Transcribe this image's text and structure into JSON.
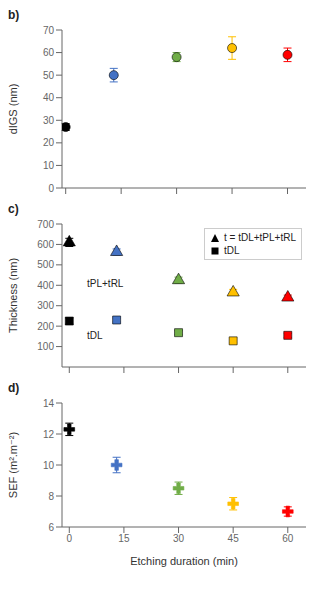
{
  "chart_data": [
    {
      "type": "scatter",
      "title": "b)",
      "ylabel": "dIGS (nm)",
      "x": [
        0,
        13,
        30,
        45,
        60
      ],
      "series": [
        {
          "values": [
            27,
            50,
            58,
            62,
            59
          ],
          "yerr": [
            1.5,
            3,
            2,
            5,
            3
          ],
          "colors": [
            "black",
            "#4472c4",
            "#70ad47",
            "#ffc000",
            "#ff0000"
          ],
          "marker": "circle"
        }
      ],
      "xlim": [
        -1,
        65
      ],
      "xticks": [
        0,
        15,
        30,
        45,
        60
      ],
      "ylim": [
        0,
        70
      ],
      "yticks": [
        0,
        10,
        20,
        30,
        40,
        50,
        60,
        70
      ],
      "tick_labels": "y"
    },
    {
      "type": "scatter",
      "title": "c)",
      "ylabel": "Thickness (nm)",
      "x": [
        0,
        13,
        30,
        45,
        60
      ],
      "series": [
        {
          "name": "t = tDL+tPL+tRL",
          "values": [
            610,
            563,
            425,
            365,
            340
          ],
          "yerr": [
            20,
            15,
            15,
            15,
            12
          ],
          "colors": [
            "black",
            "#4472c4",
            "#70ad47",
            "#ffc000",
            "#ff0000"
          ],
          "marker": "triangle"
        },
        {
          "name": "tDL",
          "values": [
            225,
            230,
            168,
            128,
            155
          ],
          "yerr": [
            15,
            10,
            10,
            10,
            10
          ],
          "colors": [
            "black",
            "#4472c4",
            "#70ad47",
            "#ffc000",
            "#ff0000"
          ],
          "marker": "square"
        }
      ],
      "annotations": [
        {
          "text": "tPL+tRL",
          "x": 3.5,
          "y": 410
        },
        {
          "text": "tDL",
          "x": 3.5,
          "y": 155
        }
      ],
      "legend": "upper right",
      "xlim": [
        -2,
        65
      ],
      "xticks": [
        0,
        15,
        30,
        45,
        60
      ],
      "ylim": [
        0,
        700
      ],
      "yticks": [
        100,
        200,
        300,
        400,
        500,
        600,
        700
      ],
      "tick_labels": "y"
    },
    {
      "type": "scatter",
      "title": "d)",
      "ylabel": "SEF (m².m⁻²)",
      "xlabel": "Etching duration (min)",
      "x": [
        0,
        13,
        30,
        45,
        60
      ],
      "series": [
        {
          "values": [
            12.3,
            10.0,
            8.5,
            7.5,
            7.0
          ],
          "yerr": [
            0.4,
            0.5,
            0.4,
            0.4,
            0.3
          ],
          "colors": [
            "black",
            "#4472c4",
            "#70ad47",
            "#ffc000",
            "#ff0000"
          ],
          "marker": "plus"
        }
      ],
      "xlim": [
        -2,
        65
      ],
      "xticks": [
        0,
        15,
        30,
        45,
        60
      ],
      "ylim": [
        6,
        14
      ],
      "yticks": [
        6,
        8,
        10,
        12,
        14
      ]
    }
  ]
}
